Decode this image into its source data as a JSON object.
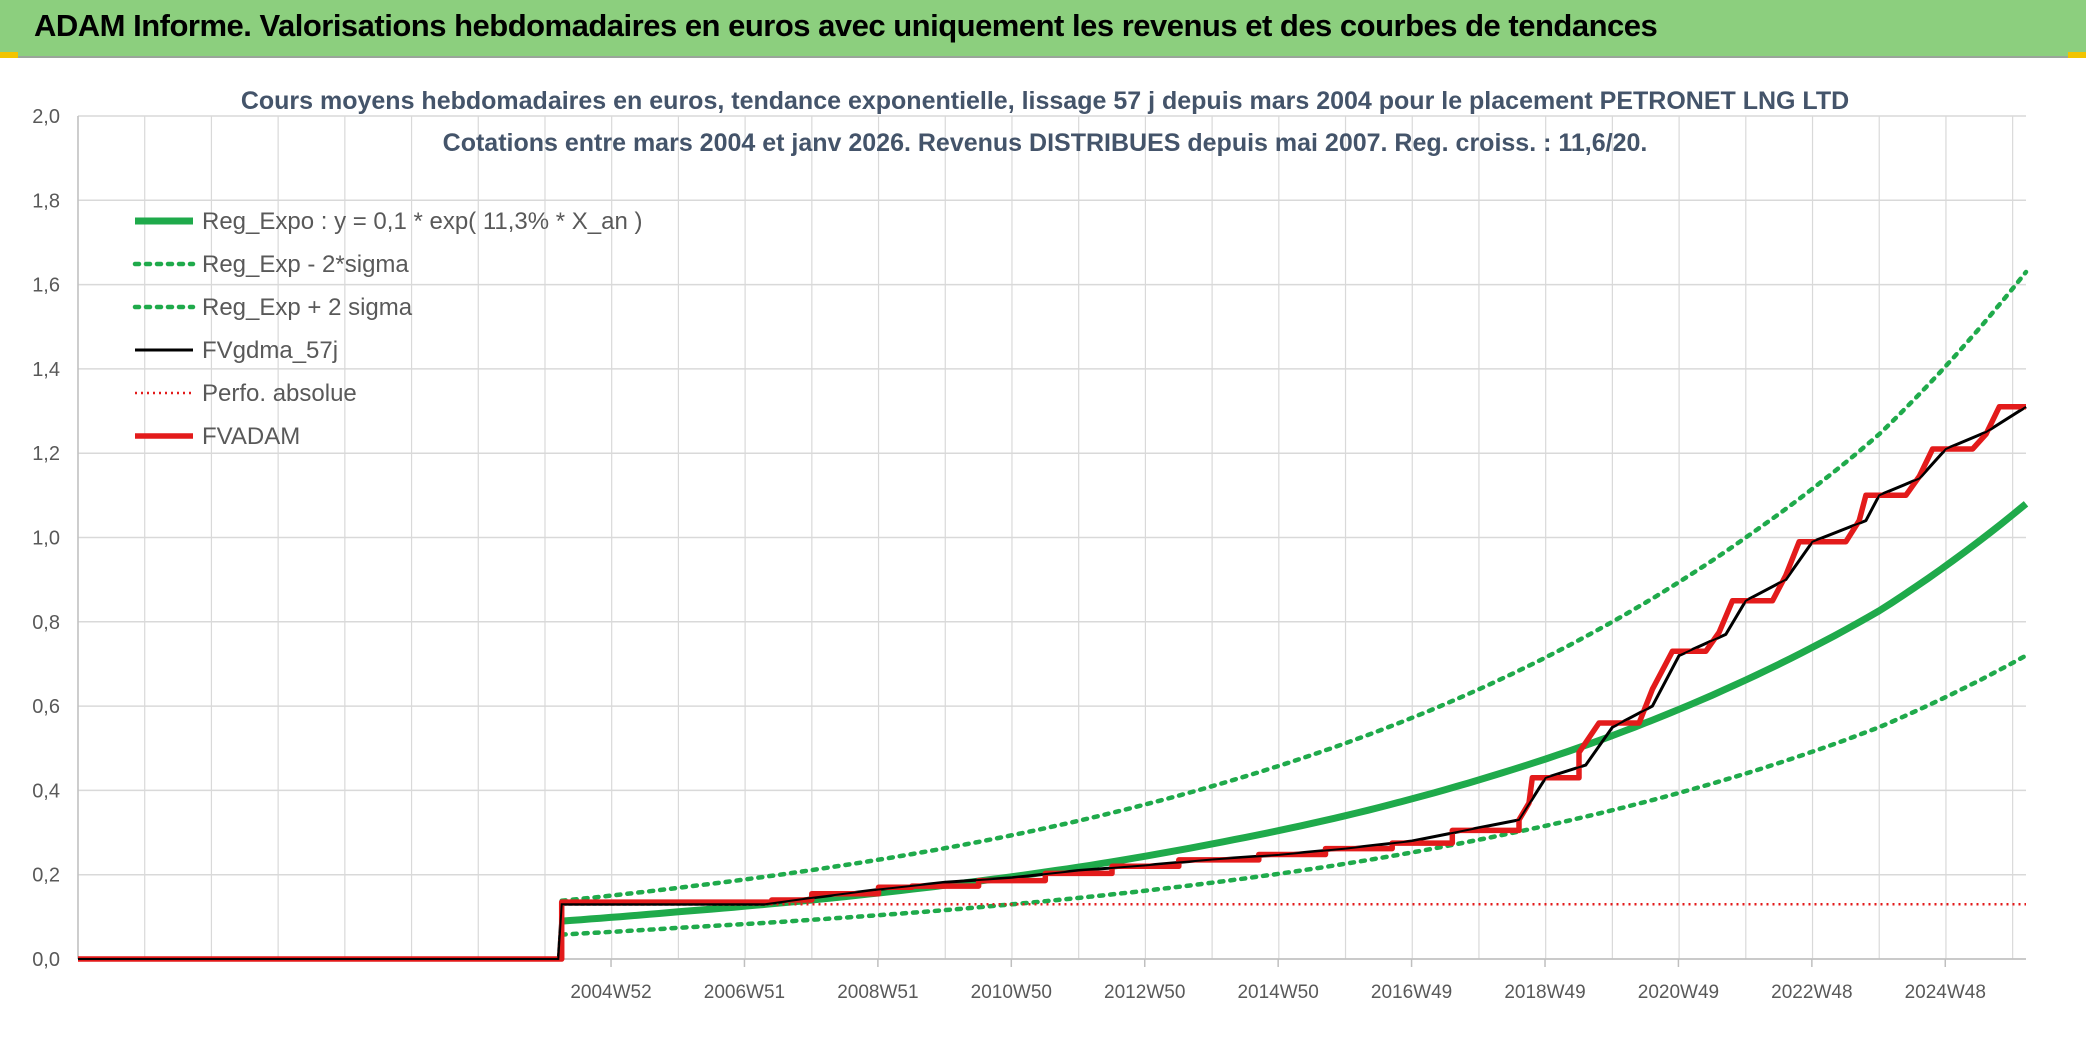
{
  "banner": {
    "title": "ADAM Informe. Valorisations hebdomadaires en euros avec uniquement les revenus et des courbes de tendances"
  },
  "colors": {
    "banner_bg": "#8ccf7e",
    "reg_expo": "#1faa4b",
    "fvgdma": "#000000",
    "fvadam": "#e31b1b",
    "grid": "#d9d9d9",
    "accent_corner": "#f2c400"
  },
  "chart_data": {
    "type": "line",
    "title": "Cours moyens hebdomadaires en euros, tendance exponentielle, lissage 57 j depuis mars 2004 pour le placement PETRONET LNG LTD",
    "subtitle": "Cotations entre mars 2004 et janv 2026. Revenus DISTRIBUES depuis mai 2007. Reg. croiss. : 11,6/20.",
    "xlabel": "",
    "ylabel": "",
    "ylim": [
      0,
      2
    ],
    "yticks": [
      "0,0",
      "0,2",
      "0,4",
      "0,6",
      "0,8",
      "1,0",
      "1,2",
      "1,4",
      "1,6",
      "1,8",
      "2,0"
    ],
    "xlim": [
      1997.0,
      2026.2
    ],
    "xticks": [
      {
        "label": "2004W52",
        "x": 2004.99
      },
      {
        "label": "2006W51",
        "x": 2006.99
      },
      {
        "label": "2008W51",
        "x": 2008.99
      },
      {
        "label": "2010W50",
        "x": 2010.99
      },
      {
        "label": "2012W50",
        "x": 2012.99
      },
      {
        "label": "2014W50",
        "x": 2014.99
      },
      {
        "label": "2016W49",
        "x": 2016.99
      },
      {
        "label": "2018W49",
        "x": 2018.99
      },
      {
        "label": "2020W49",
        "x": 2020.99
      },
      {
        "label": "2022W48",
        "x": 2022.99
      },
      {
        "label": "2024W48",
        "x": 2024.99
      }
    ],
    "grid": true,
    "legend_position": "top-left",
    "series": [
      {
        "name": "Reg_Expo : y = 0,1 * exp( 11,3% *  X_an )",
        "style": "solid-thick",
        "color": "#1faa4b",
        "points": [
          [
            2004.25,
            0.09
          ],
          [
            2006,
            0.112
          ],
          [
            2008,
            0.14
          ],
          [
            2010,
            0.175
          ],
          [
            2012,
            0.218
          ],
          [
            2014,
            0.273
          ],
          [
            2016,
            0.34
          ],
          [
            2018,
            0.425
          ],
          [
            2020,
            0.53
          ],
          [
            2022,
            0.662
          ],
          [
            2024,
            0.826
          ],
          [
            2026.2,
            1.08
          ]
        ]
      },
      {
        "name": "Reg_Exp - 2*sigma",
        "style": "dotted",
        "color": "#1faa4b",
        "points": [
          [
            2004.25,
            0.058
          ],
          [
            2006,
            0.074
          ],
          [
            2008,
            0.093
          ],
          [
            2010,
            0.116
          ],
          [
            2012,
            0.145
          ],
          [
            2014,
            0.181
          ],
          [
            2016,
            0.226
          ],
          [
            2018,
            0.283
          ],
          [
            2020,
            0.353
          ],
          [
            2022,
            0.44
          ],
          [
            2024,
            0.55
          ],
          [
            2026.2,
            0.72
          ]
        ]
      },
      {
        "name": "Reg_Exp + 2 sigma",
        "style": "dotted",
        "color": "#1faa4b",
        "points": [
          [
            2004.25,
            0.138
          ],
          [
            2006,
            0.169
          ],
          [
            2008,
            0.211
          ],
          [
            2010,
            0.263
          ],
          [
            2012,
            0.328
          ],
          [
            2014,
            0.41
          ],
          [
            2016,
            0.512
          ],
          [
            2018,
            0.64
          ],
          [
            2020,
            0.8
          ],
          [
            2022,
            1.0
          ],
          [
            2024,
            1.245
          ],
          [
            2026.2,
            1.63
          ]
        ]
      },
      {
        "name": "FVgdma_57j",
        "style": "solid-thin",
        "color": "#000000",
        "points": [
          [
            1997,
            0
          ],
          [
            2004.2,
            0
          ],
          [
            2004.25,
            0.13
          ],
          [
            2007.3,
            0.13
          ],
          [
            2008,
            0.145
          ],
          [
            2009,
            0.165
          ],
          [
            2010,
            0.182
          ],
          [
            2011,
            0.193
          ],
          [
            2012,
            0.21
          ],
          [
            2013,
            0.222
          ],
          [
            2014,
            0.236
          ],
          [
            2015,
            0.247
          ],
          [
            2016,
            0.262
          ],
          [
            2017,
            0.28
          ],
          [
            2017.8,
            0.305
          ],
          [
            2018.6,
            0.33
          ],
          [
            2019,
            0.43
          ],
          [
            2019.6,
            0.46
          ],
          [
            2020,
            0.55
          ],
          [
            2020.6,
            0.6
          ],
          [
            2021,
            0.72
          ],
          [
            2021.7,
            0.77
          ],
          [
            2022,
            0.85
          ],
          [
            2022.6,
            0.9
          ],
          [
            2023,
            0.99
          ],
          [
            2023.8,
            1.04
          ],
          [
            2024,
            1.1
          ],
          [
            2024.6,
            1.14
          ],
          [
            2025,
            1.21
          ],
          [
            2025.6,
            1.25
          ],
          [
            2026.2,
            1.31
          ]
        ]
      },
      {
        "name": "Perfo. absolue",
        "style": "dotted-thin",
        "color": "#e31b1b",
        "points": [
          [
            1997,
            0
          ],
          [
            2004.2,
            0
          ],
          [
            2004.25,
            0.13
          ],
          [
            2026.2,
            0.13
          ]
        ]
      },
      {
        "name": "FVADAM",
        "style": "step-thick",
        "color": "#e31b1b",
        "points": [
          [
            1997,
            0
          ],
          [
            2004.25,
            0
          ],
          [
            2004.25,
            0.135
          ],
          [
            2007.4,
            0.135
          ],
          [
            2007.4,
            0.14
          ],
          [
            2008,
            0.14
          ],
          [
            2008,
            0.155
          ],
          [
            2009,
            0.155
          ],
          [
            2009,
            0.17
          ],
          [
            2009.5,
            0.17
          ],
          [
            2009.5,
            0.173
          ],
          [
            2010.5,
            0.173
          ],
          [
            2010.5,
            0.186
          ],
          [
            2011.5,
            0.186
          ],
          [
            2011.5,
            0.203
          ],
          [
            2012.5,
            0.203
          ],
          [
            2012.5,
            0.22
          ],
          [
            2013.5,
            0.22
          ],
          [
            2013.5,
            0.235
          ],
          [
            2014.7,
            0.235
          ],
          [
            2014.7,
            0.248
          ],
          [
            2015.7,
            0.248
          ],
          [
            2015.7,
            0.262
          ],
          [
            2016.7,
            0.262
          ],
          [
            2016.7,
            0.275
          ],
          [
            2017.6,
            0.275
          ],
          [
            2017.6,
            0.305
          ],
          [
            2018.6,
            0.305
          ],
          [
            2018.6,
            0.33
          ],
          [
            2018.75,
            0.37
          ],
          [
            2018.8,
            0.43
          ],
          [
            2019.5,
            0.43
          ],
          [
            2019.5,
            0.49
          ],
          [
            2019.8,
            0.56
          ],
          [
            2020.4,
            0.56
          ],
          [
            2020.6,
            0.64
          ],
          [
            2020.9,
            0.73
          ],
          [
            2021.4,
            0.73
          ],
          [
            2021.6,
            0.775
          ],
          [
            2021.8,
            0.85
          ],
          [
            2022.4,
            0.85
          ],
          [
            2022.6,
            0.91
          ],
          [
            2022.8,
            0.99
          ],
          [
            2023.5,
            0.99
          ],
          [
            2023.7,
            1.04
          ],
          [
            2023.8,
            1.1
          ],
          [
            2024.4,
            1.1
          ],
          [
            2024.6,
            1.145
          ],
          [
            2024.8,
            1.21
          ],
          [
            2025.4,
            1.21
          ],
          [
            2025.6,
            1.245
          ],
          [
            2025.8,
            1.31
          ],
          [
            2026.2,
            1.31
          ]
        ]
      }
    ]
  }
}
